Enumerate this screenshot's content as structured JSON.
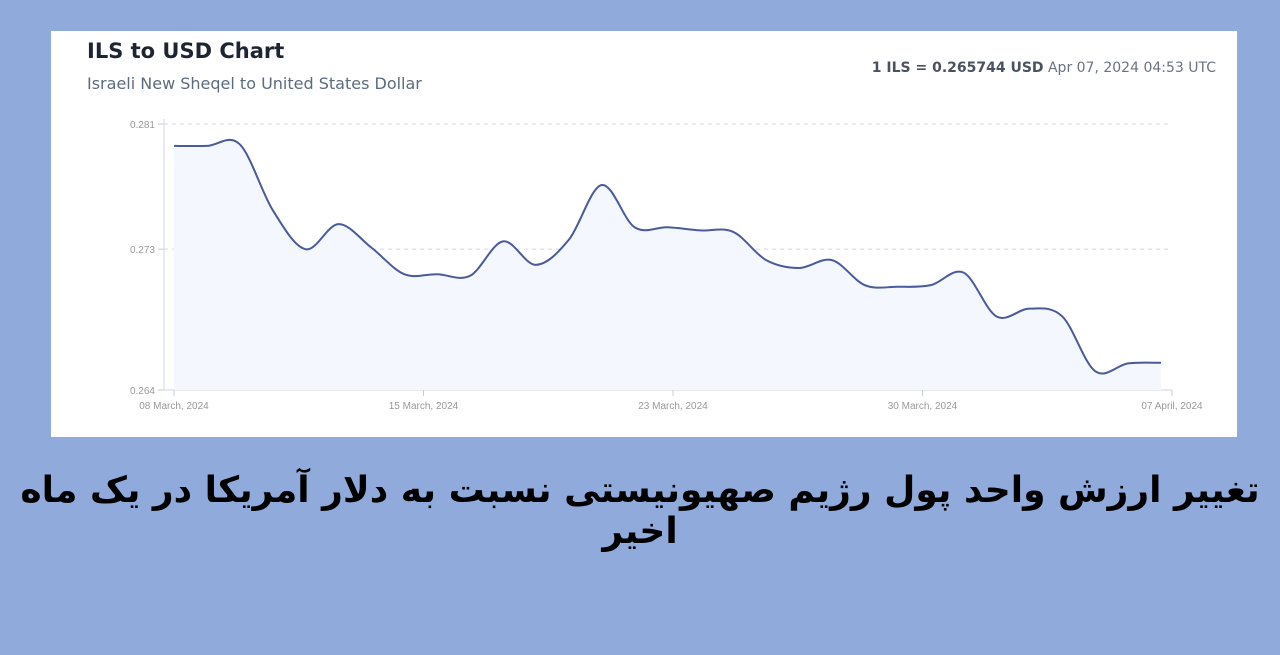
{
  "header": {
    "title": "ILS to USD Chart",
    "subtitle": "Israeli New Sheqel to United States Dollar",
    "rate_lhs": "1 ILS = ",
    "rate_value": "0.265744 USD",
    "timestamp": "Apr 07, 2024 04:53 UTC"
  },
  "caption": "تغییر ارزش واحد پول رژیم صهیونیستی نسبت به دلار آمریکا در یک ماه اخیر",
  "colors": {
    "line": "#4a5a9a",
    "fill": "#f4f7fd",
    "background": "#8faadb"
  },
  "chart_data": {
    "type": "area",
    "title": "ILS to USD Chart",
    "x_tick_labels": [
      "08 March, 2024",
      "15 March, 2024",
      "23 March, 2024",
      "30 March, 2024",
      "07 April, 2024"
    ],
    "y_ticks": [
      0.264,
      0.273,
      0.281
    ],
    "ylim": [
      0.264,
      0.281
    ],
    "grid": "horizontal dashed",
    "x": [
      "2024-03-08",
      "2024-03-09",
      "2024-03-10",
      "2024-03-11",
      "2024-03-12",
      "2024-03-13",
      "2024-03-14",
      "2024-03-15",
      "2024-03-16",
      "2024-03-17",
      "2024-03-18",
      "2024-03-19",
      "2024-03-20",
      "2024-03-21",
      "2024-03-22",
      "2024-03-23",
      "2024-03-24",
      "2024-03-25",
      "2024-03-26",
      "2024-03-27",
      "2024-03-28",
      "2024-03-29",
      "2024-03-30",
      "2024-03-31",
      "2024-04-01",
      "2024-04-02",
      "2024-04-03",
      "2024-04-04",
      "2024-04-05",
      "2024-04-06",
      "2024-04-07"
    ],
    "values": [
      0.2796,
      0.2796,
      0.2797,
      0.2755,
      0.273,
      0.2746,
      0.2731,
      0.2714,
      0.2714,
      0.2713,
      0.2735,
      0.272,
      0.2736,
      0.2771,
      0.2744,
      0.2744,
      0.2742,
      0.2741,
      0.2723,
      0.2718,
      0.2723,
      0.2707,
      0.2706,
      0.2707,
      0.2715,
      0.2687,
      0.2692,
      0.2687,
      0.2652,
      0.2657,
      0.26574
    ]
  }
}
